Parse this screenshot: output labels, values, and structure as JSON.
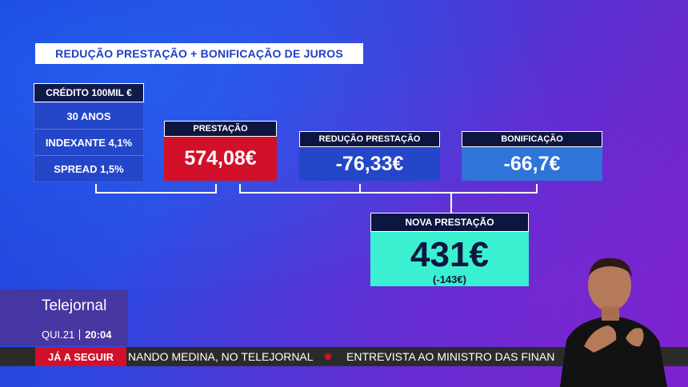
{
  "title": "REDUÇÃO PRESTAÇÃO + BONIFICAÇÃO DE JUROS",
  "credit": {
    "header": "CRÉDITO 100MIL €",
    "rows": [
      "30 ANOS",
      "INDEXANTE 4,1%",
      "SPREAD 1,5%"
    ]
  },
  "prestacao": {
    "label": "PRESTAÇÃO",
    "value": "574,08€"
  },
  "reducao": {
    "label": "REDUÇÃO PRESTAÇÃO",
    "value": "-76,33€"
  },
  "bonificacao": {
    "label": "BONIFICAÇÃO",
    "value": "-66,7€"
  },
  "nova": {
    "label": "NOVA PRESTAÇÃO",
    "value": "431€",
    "difference": "(-143€)"
  },
  "show": {
    "name": "Telejornal",
    "day": "QUI.21",
    "time": "20:04"
  },
  "ticker": {
    "label": "JÁ A SEGUIR",
    "items": [
      "NANDO MEDINA, NO TELEJORNAL",
      "ENTREVISTA AO MINISTRO DAS FINAN"
    ]
  },
  "colors": {
    "prestacao_bg": "#d3102a",
    "reducao_bg": "#2446c8",
    "bonificacao_bg": "#2f74d8",
    "nova_bg": "#3bf0d0",
    "ticker_accent": "#d3102a"
  }
}
